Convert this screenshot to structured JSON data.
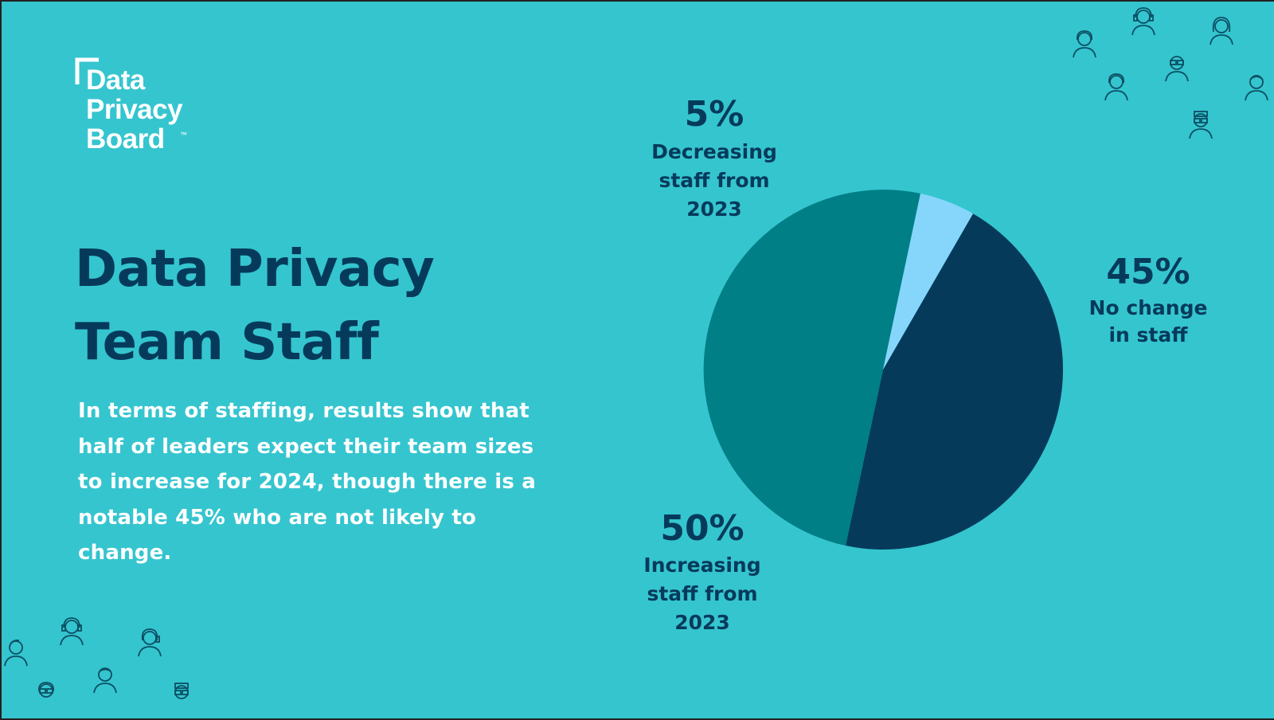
{
  "logo": {
    "lines": [
      "Data",
      "Privacy",
      "Board"
    ],
    "trademark": "™"
  },
  "title": {
    "line1": "Data Privacy",
    "line2": "Team Staff"
  },
  "body_text": "In terms of staffing, results show that half of leaders expect their team sizes to increase for 2024, though there is a notable 45% who are not likely to change.",
  "colors": {
    "background": "#35c5cf",
    "navy": "#063a5b",
    "teal": "#007f86",
    "light_blue": "#86d6fb",
    "white": "#ffffff"
  },
  "icons": [
    "person-icon",
    "headset-person-icon",
    "glasses-person-icon",
    "woman-icon"
  ],
  "chart_data": {
    "type": "pie",
    "start_angle_deg": 30,
    "direction": "clockwise",
    "slices": [
      {
        "key": "no_change",
        "value": 45,
        "pct_label": "45%",
        "desc": "No change\nin staff",
        "color": "#063a5b"
      },
      {
        "key": "increasing",
        "value": 50,
        "pct_label": "50%",
        "desc": "Increasing\nstaff from\n2023",
        "color": "#007f86"
      },
      {
        "key": "decreasing",
        "value": 5,
        "pct_label": "5%",
        "desc": "Decreasing\nstaff from\n2023",
        "color": "#86d6fb"
      }
    ]
  }
}
